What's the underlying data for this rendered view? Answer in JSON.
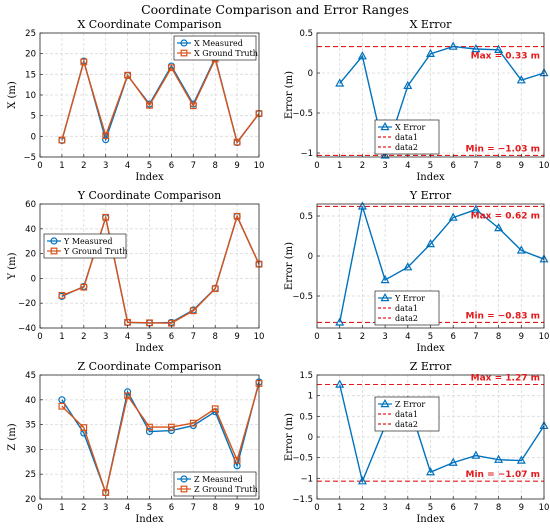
{
  "figure_title": "Coordinate Comparison and Error Ranges",
  "chart_data": [
    {
      "type": "line",
      "title": "X Coordinate Comparison",
      "xlabel": "Index",
      "ylabel": "X (m)",
      "xlim": [
        0,
        10
      ],
      "ylim": [
        -5,
        25
      ],
      "xticks": [
        0,
        1,
        2,
        3,
        4,
        5,
        6,
        7,
        8,
        9,
        10
      ],
      "yticks": [
        -5,
        0,
        5,
        10,
        15,
        20,
        25
      ],
      "grid": true,
      "legend_position": "top-right",
      "x": [
        1,
        2,
        3,
        4,
        5,
        6,
        7,
        8,
        9,
        10
      ],
      "series": [
        {
          "name": "X Measured",
          "marker": "circle",
          "color": "#0072bd",
          "values": [
            -1.0,
            18.2,
            -0.8,
            14.7,
            7.8,
            17.0,
            7.8,
            19.0,
            -1.5,
            5.5
          ]
        },
        {
          "name": "X Ground Truth",
          "marker": "square",
          "color": "#d95319",
          "values": [
            -0.9,
            18.0,
            0.2,
            14.8,
            7.5,
            16.6,
            7.4,
            18.7,
            -1.4,
            5.5
          ]
        }
      ]
    },
    {
      "type": "line",
      "title": "X Error",
      "xlabel": "Index",
      "ylabel": "Error (m)",
      "xlim": [
        0,
        10
      ],
      "ylim": [
        -1.05,
        0.5
      ],
      "xticks": [
        0,
        1,
        2,
        3,
        4,
        5,
        6,
        7,
        8,
        9,
        10
      ],
      "yticks": [
        -1,
        -0.5,
        0,
        0.5
      ],
      "grid": true,
      "legend_position": "bottom-left",
      "x": [
        1,
        2,
        3,
        4,
        5,
        6,
        7,
        8,
        9,
        10
      ],
      "series": [
        {
          "name": "X Error",
          "marker": "triangle",
          "color": "#0072bd",
          "values": [
            -0.13,
            0.21,
            -1.03,
            -0.16,
            0.24,
            0.33,
            0.3,
            0.29,
            -0.09,
            0.0
          ]
        }
      ],
      "hlines": [
        {
          "name": "data1",
          "value": 0.33,
          "color": "#e31a1c"
        },
        {
          "name": "data2",
          "value": -1.03,
          "color": "#e31a1c"
        }
      ],
      "annotations": [
        {
          "text": "Max = 0.33 m",
          "value": 0.33,
          "where": "below"
        },
        {
          "text": "Min = −1.03 m",
          "value": -1.03,
          "where": "above"
        }
      ]
    },
    {
      "type": "line",
      "title": "Y Coordinate Comparison",
      "xlabel": "Index",
      "ylabel": "Y (m)",
      "xlim": [
        0,
        10
      ],
      "ylim": [
        -40,
        60
      ],
      "xticks": [
        0,
        1,
        2,
        3,
        4,
        5,
        6,
        7,
        8,
        9,
        10
      ],
      "yticks": [
        -40,
        -20,
        0,
        20,
        40,
        60
      ],
      "grid": true,
      "legend_position": "top-left",
      "x": [
        1,
        2,
        3,
        4,
        5,
        6,
        7,
        8,
        9,
        10
      ],
      "series": [
        {
          "name": "Y Measured",
          "marker": "circle",
          "color": "#0072bd",
          "values": [
            -14.5,
            -6.5,
            49.0,
            -35.5,
            -36.0,
            -35.5,
            -25.5,
            -8.0,
            50.0,
            11.5
          ]
        },
        {
          "name": "Y Ground Truth",
          "marker": "square",
          "color": "#d95319",
          "values": [
            -13.7,
            -7.1,
            49.3,
            -35.4,
            -35.8,
            -36.1,
            -26.1,
            -8.3,
            50.1,
            11.5
          ]
        }
      ]
    },
    {
      "type": "line",
      "title": "Y Error",
      "xlabel": "Index",
      "ylabel": "Error (m)",
      "xlim": [
        0,
        10
      ],
      "ylim": [
        -0.9,
        0.65
      ],
      "xticks": [
        0,
        1,
        2,
        3,
        4,
        5,
        6,
        7,
        8,
        9,
        10
      ],
      "yticks": [
        -0.5,
        0,
        0.5
      ],
      "grid": true,
      "legend_position": "bottom-left",
      "x": [
        1,
        2,
        3,
        4,
        5,
        6,
        7,
        8,
        9,
        10
      ],
      "series": [
        {
          "name": "Y Error",
          "marker": "triangle",
          "color": "#0072bd",
          "values": [
            -0.83,
            0.62,
            -0.3,
            -0.14,
            0.15,
            0.48,
            0.58,
            0.35,
            0.07,
            -0.04
          ]
        }
      ],
      "hlines": [
        {
          "name": "data1",
          "value": 0.62,
          "color": "#e31a1c"
        },
        {
          "name": "data2",
          "value": -0.83,
          "color": "#e31a1c"
        }
      ],
      "annotations": [
        {
          "text": "Max = 0.62 m",
          "value": 0.62,
          "where": "below"
        },
        {
          "text": "Min = −0.83 m",
          "value": -0.83,
          "where": "above"
        }
      ]
    },
    {
      "type": "line",
      "title": "Z Coordinate Comparison",
      "xlabel": "Index",
      "ylabel": "Z (m)",
      "xlim": [
        0,
        10
      ],
      "ylim": [
        20,
        45
      ],
      "xticks": [
        0,
        1,
        2,
        3,
        4,
        5,
        6,
        7,
        8,
        9,
        10
      ],
      "yticks": [
        20,
        25,
        30,
        35,
        40,
        45
      ],
      "grid": true,
      "legend_position": "bottom-right",
      "x": [
        1,
        2,
        3,
        4,
        5,
        6,
        7,
        8,
        9,
        10
      ],
      "series": [
        {
          "name": "Z Measured",
          "marker": "circle",
          "color": "#0072bd",
          "values": [
            40.0,
            33.3,
            21.3,
            41.6,
            33.6,
            33.8,
            34.8,
            37.6,
            26.7,
            43.6
          ]
        },
        {
          "name": "Z Ground Truth",
          "marker": "square",
          "color": "#d95319",
          "values": [
            38.7,
            34.4,
            21.3,
            40.8,
            34.5,
            34.5,
            35.3,
            38.2,
            27.8,
            43.3
          ]
        }
      ]
    },
    {
      "type": "line",
      "title": "Z Error",
      "xlabel": "Index",
      "ylabel": "Error (m)",
      "xlim": [
        0,
        10
      ],
      "ylim": [
        -1.5,
        1.5
      ],
      "xticks": [
        0,
        1,
        2,
        3,
        4,
        5,
        6,
        7,
        8,
        9,
        10
      ],
      "yticks": [
        -1.5,
        -1,
        -0.5,
        0,
        0.5,
        1,
        1.5
      ],
      "grid": true,
      "legend_position": "center",
      "x": [
        1,
        2,
        3,
        4,
        5,
        6,
        7,
        8,
        9,
        10
      ],
      "series": [
        {
          "name": "Z Error",
          "marker": "triangle",
          "color": "#0072bd",
          "values": [
            1.27,
            -1.07,
            0.27,
            0.88,
            -0.85,
            -0.62,
            -0.45,
            -0.55,
            -0.57,
            0.27
          ]
        }
      ],
      "hlines": [
        {
          "name": "data1",
          "value": 1.27,
          "color": "#e31a1c"
        },
        {
          "name": "data2",
          "value": -1.07,
          "color": "#e31a1c"
        }
      ],
      "annotations": [
        {
          "text": "Max = 1.27 m",
          "value": 1.27,
          "where": "above"
        },
        {
          "text": "Min = −1.07 m",
          "value": -1.07,
          "where": "above"
        }
      ]
    }
  ]
}
